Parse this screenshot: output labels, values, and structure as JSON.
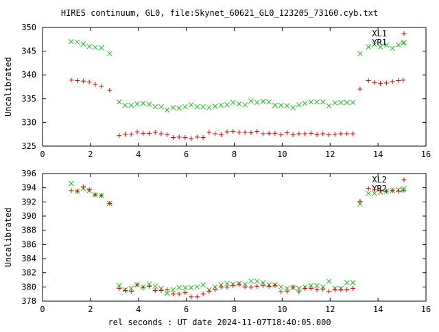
{
  "title": "HIRES continuum, GL0, file:Skynet_60621_GL0_123205_73160.cyb.txt",
  "xlabel": "rel seconds : UT date 2024-11-07T18:40:05.000",
  "colors": {
    "series1": "#cc0000",
    "series2": "#22bb22",
    "axis": "#000000"
  },
  "chart_data": [
    {
      "type": "scatter",
      "marker": "plus-and-cross",
      "ylabel": "Uncalibrated",
      "xlim": [
        0,
        16
      ],
      "ylim": [
        325,
        350
      ],
      "xticks": [
        0,
        2,
        4,
        6,
        8,
        10,
        12,
        14,
        16
      ],
      "yticks": [
        325,
        330,
        335,
        340,
        345,
        350
      ],
      "grid": false,
      "legend_position": "top-right",
      "x": [
        1.2,
        1.45,
        1.7,
        1.95,
        2.2,
        2.45,
        2.8,
        3.2,
        3.45,
        3.7,
        3.95,
        4.2,
        4.45,
        4.7,
        4.95,
        5.2,
        5.45,
        5.7,
        5.95,
        6.2,
        6.45,
        6.7,
        6.95,
        7.2,
        7.45,
        7.7,
        7.95,
        8.2,
        8.45,
        8.7,
        8.95,
        9.2,
        9.45,
        9.7,
        9.95,
        10.2,
        10.45,
        10.7,
        10.95,
        11.2,
        11.45,
        11.7,
        11.95,
        12.2,
        12.45,
        12.7,
        12.95,
        13.25,
        13.6,
        13.85,
        14.1,
        14.35,
        14.6,
        14.85,
        15.05
      ],
      "series": [
        {
          "name": "XL1",
          "values": [
            338.9,
            338.8,
            338.7,
            338.5,
            338.0,
            337.6,
            336.8,
            327.2,
            327.5,
            327.5,
            328.0,
            327.7,
            327.7,
            327.9,
            327.6,
            327.4,
            326.8,
            326.9,
            326.8,
            326.6,
            326.9,
            326.8,
            327.9,
            327.6,
            327.4,
            328.0,
            328.1,
            327.9,
            327.9,
            327.8,
            328.1,
            327.6,
            327.7,
            327.7,
            327.4,
            327.8,
            327.4,
            327.6,
            327.6,
            327.7,
            327.4,
            327.6,
            327.4,
            327.5,
            327.6,
            327.6,
            327.6,
            337.0,
            338.8,
            338.4,
            338.2,
            338.3,
            338.6,
            338.8,
            338.9
          ]
        },
        {
          "name": "YR1",
          "values": [
            347.0,
            346.9,
            346.5,
            346.0,
            345.8,
            345.7,
            344.5,
            334.3,
            333.6,
            333.6,
            333.9,
            334.0,
            333.8,
            333.3,
            333.3,
            332.6,
            333.1,
            333.0,
            333.3,
            333.7,
            333.3,
            333.3,
            333.1,
            333.4,
            333.6,
            333.7,
            334.2,
            333.9,
            333.7,
            334.5,
            334.2,
            334.4,
            334.3,
            333.6,
            333.6,
            333.5,
            333.1,
            333.7,
            334.0,
            334.3,
            334.3,
            334.3,
            333.5,
            334.1,
            334.2,
            334.2,
            334.2,
            344.5,
            345.9,
            346.4,
            345.9,
            346.3,
            345.6,
            346.3,
            346.7
          ]
        }
      ]
    },
    {
      "type": "scatter",
      "marker": "plus-and-cross",
      "ylabel": "Uncalibrated",
      "xlim": [
        0,
        16
      ],
      "ylim": [
        378,
        396
      ],
      "xticks": [
        0,
        2,
        4,
        6,
        8,
        10,
        12,
        14,
        16
      ],
      "yticks": [
        378,
        380,
        382,
        384,
        386,
        388,
        390,
        392,
        394,
        396
      ],
      "grid": false,
      "legend_position": "top-right",
      "x": [
        1.2,
        1.45,
        1.7,
        1.95,
        2.2,
        2.45,
        2.8,
        3.2,
        3.45,
        3.7,
        3.95,
        4.2,
        4.45,
        4.7,
        4.95,
        5.2,
        5.45,
        5.7,
        5.95,
        6.2,
        6.45,
        6.7,
        6.95,
        7.2,
        7.45,
        7.7,
        7.95,
        8.2,
        8.45,
        8.7,
        8.95,
        9.2,
        9.45,
        9.7,
        9.95,
        10.2,
        10.45,
        10.7,
        10.95,
        11.2,
        11.45,
        11.7,
        11.95,
        12.2,
        12.45,
        12.7,
        12.95,
        13.25,
        13.6,
        13.85,
        14.1,
        14.35,
        14.6,
        14.85,
        15.05
      ],
      "series": [
        {
          "name": "XL2",
          "values": [
            393.6,
            393.5,
            394.1,
            393.7,
            393.0,
            392.9,
            391.8,
            379.8,
            379.5,
            379.4,
            380.3,
            379.9,
            380.1,
            379.5,
            379.5,
            379.6,
            379.0,
            379.0,
            379.2,
            378.6,
            378.6,
            379.0,
            379.4,
            379.6,
            380.0,
            380.0,
            380.2,
            380.4,
            380.0,
            380.0,
            380.1,
            380.2,
            380.1,
            380.2,
            379.3,
            379.4,
            380.0,
            379.3,
            379.8,
            379.8,
            379.6,
            379.7,
            379.4,
            379.6,
            379.6,
            379.6,
            379.8,
            392.1,
            393.9,
            393.7,
            393.6,
            393.5,
            393.6,
            393.5,
            393.6
          ]
        },
        {
          "name": "YR2",
          "values": [
            394.6,
            393.5,
            393.9,
            393.6,
            393.0,
            392.9,
            391.8,
            380.2,
            379.6,
            379.8,
            380.3,
            380.0,
            380.4,
            380.1,
            379.8,
            379.1,
            379.6,
            379.9,
            379.9,
            379.9,
            380.0,
            380.3,
            379.6,
            380.0,
            380.3,
            380.5,
            380.4,
            380.5,
            380.4,
            380.8,
            380.8,
            380.6,
            380.3,
            380.3,
            380.0,
            379.8,
            379.9,
            379.8,
            380.0,
            380.2,
            380.2,
            380.0,
            380.8,
            379.8,
            379.8,
            380.6,
            380.6,
            391.7,
            393.2,
            393.2,
            393.4,
            393.5,
            393.6,
            393.7,
            393.7
          ]
        }
      ]
    }
  ]
}
